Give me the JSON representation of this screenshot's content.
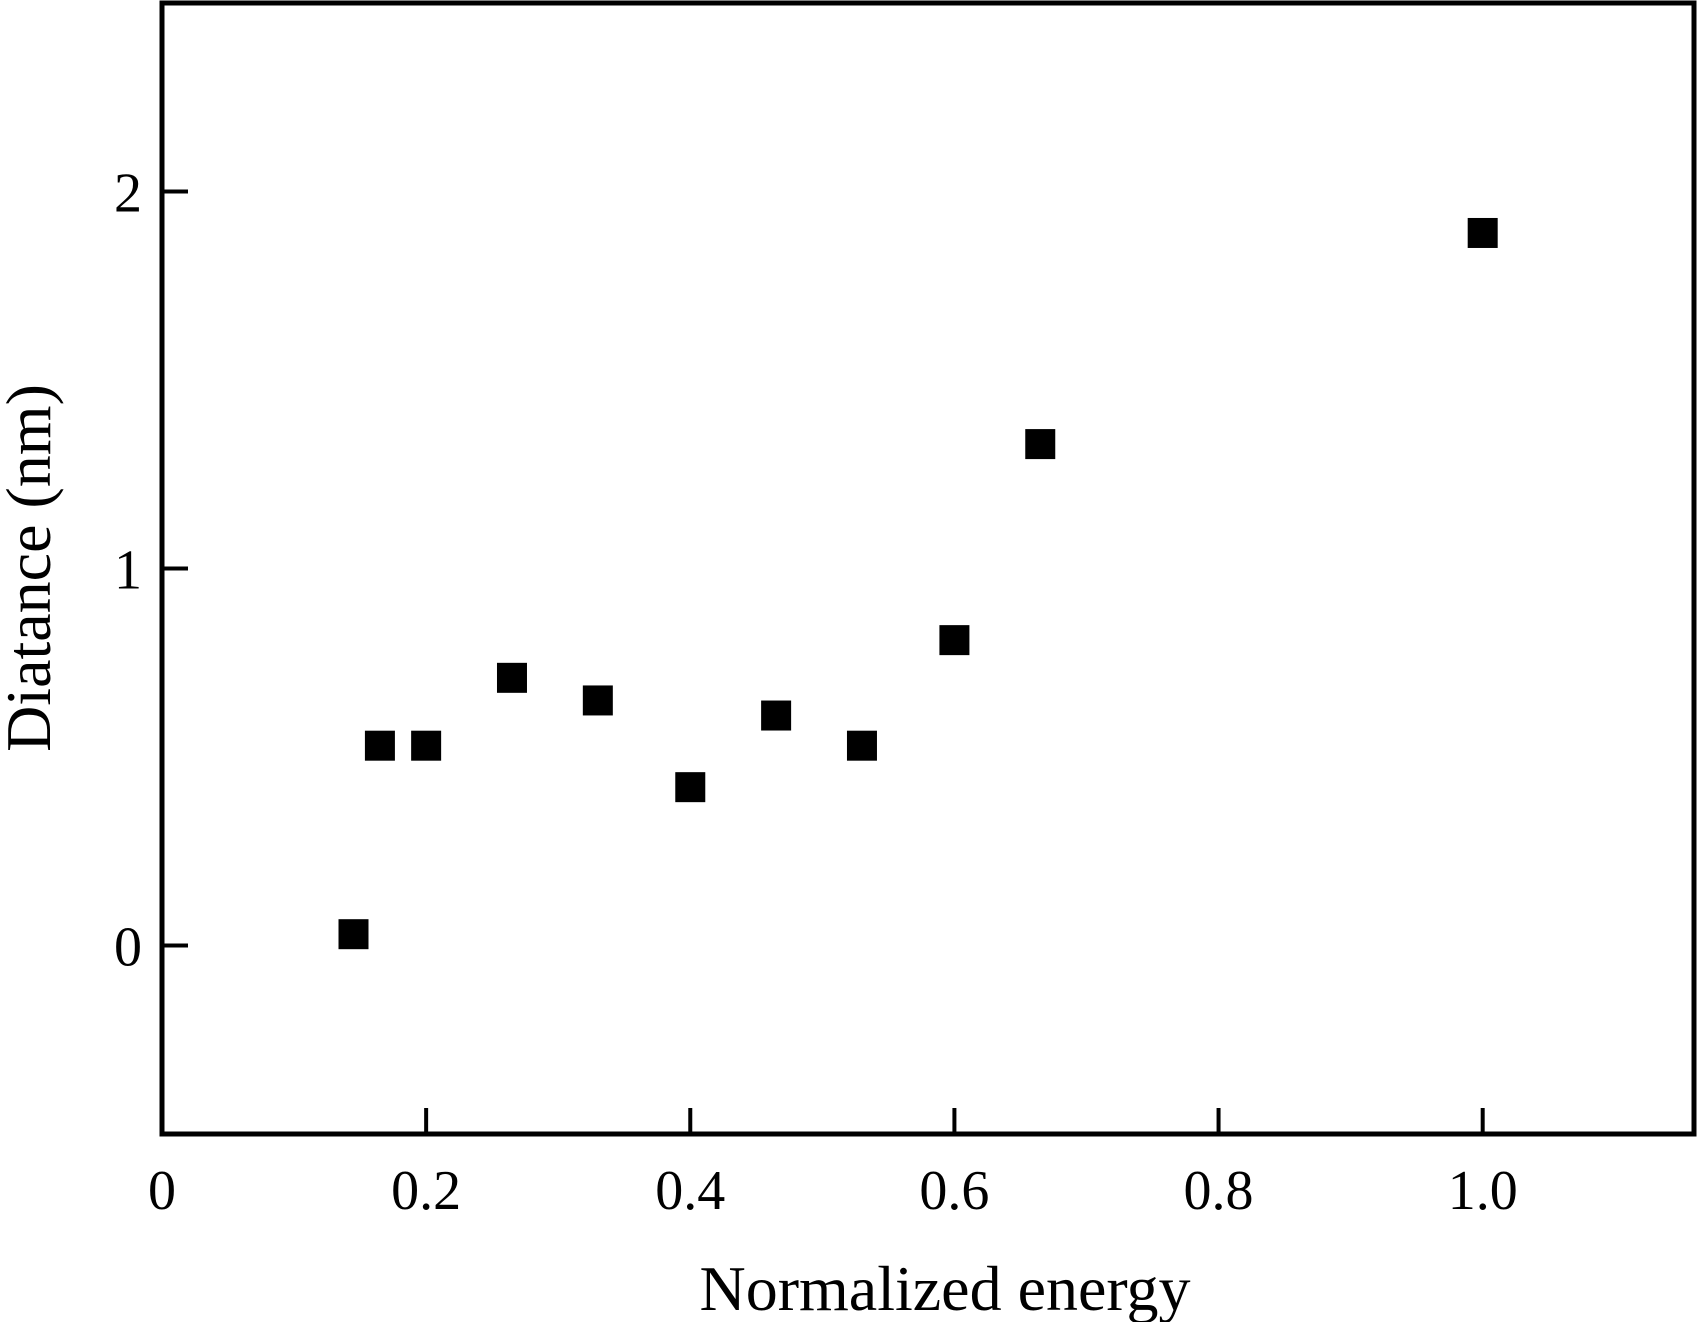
{
  "chart_data": {
    "type": "scatter",
    "xlabel": "Normalized energy",
    "ylabel": "Diatance (nm)",
    "xlim": [
      0,
      1.16
    ],
    "ylim": [
      -0.5,
      2.5
    ],
    "xticks": [
      0,
      0.2,
      0.4,
      0.6,
      0.8,
      1.0
    ],
    "xtick_labels": [
      "0",
      "0.2",
      "0.4",
      "0.6",
      "0.8",
      "1.0"
    ],
    "yticks": [
      0,
      1,
      2
    ],
    "ytick_labels": [
      "0",
      "1",
      "2"
    ],
    "grid": false,
    "marker": "square",
    "marker_color": "#000000",
    "series": [
      {
        "x": [
          0.145,
          0.165,
          0.2,
          0.265,
          0.33,
          0.4,
          0.465,
          0.53,
          0.6,
          0.665,
          1.0
        ],
        "y": [
          0.03,
          0.53,
          0.53,
          0.71,
          0.65,
          0.42,
          0.61,
          0.53,
          0.81,
          1.33,
          1.89
        ]
      }
    ]
  }
}
